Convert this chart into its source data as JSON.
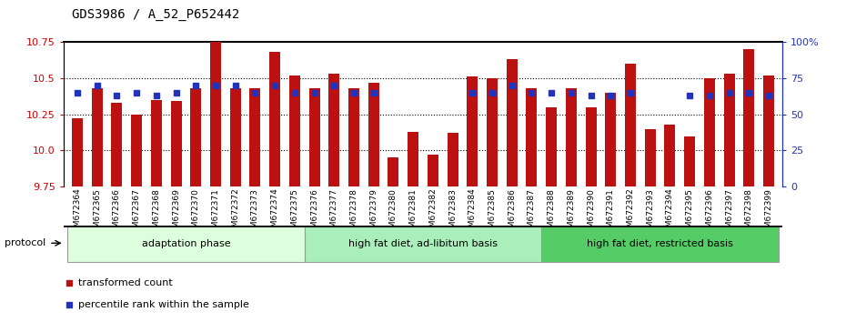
{
  "title": "GDS3986 / A_52_P652442",
  "samples": [
    "GSM672364",
    "GSM672365",
    "GSM672366",
    "GSM672367",
    "GSM672368",
    "GSM672369",
    "GSM672370",
    "GSM672371",
    "GSM672372",
    "GSM672373",
    "GSM672374",
    "GSM672375",
    "GSM672376",
    "GSM672377",
    "GSM672378",
    "GSM672379",
    "GSM672380",
    "GSM672381",
    "GSM672382",
    "GSM672383",
    "GSM672384",
    "GSM672385",
    "GSM672386",
    "GSM672387",
    "GSM672388",
    "GSM672389",
    "GSM672390",
    "GSM672391",
    "GSM672392",
    "GSM672393",
    "GSM672394",
    "GSM672395",
    "GSM672396",
    "GSM672397",
    "GSM672398",
    "GSM672399"
  ],
  "bar_values": [
    10.22,
    10.43,
    10.33,
    10.25,
    10.35,
    10.34,
    10.43,
    10.75,
    10.43,
    10.43,
    10.68,
    10.52,
    10.43,
    10.53,
    10.43,
    10.47,
    9.95,
    10.13,
    9.97,
    10.12,
    10.51,
    10.5,
    10.63,
    10.43,
    10.3,
    10.43,
    10.3,
    10.4,
    10.6,
    10.15,
    10.18,
    10.1,
    10.5,
    10.53,
    10.7,
    10.52
  ],
  "percentile_values": [
    65,
    70,
    63,
    65,
    63,
    65,
    70,
    70,
    70,
    65,
    70,
    65,
    65,
    70,
    65,
    65,
    null,
    null,
    null,
    null,
    65,
    65,
    70,
    65,
    65,
    65,
    63,
    63,
    65,
    null,
    null,
    63,
    63,
    65,
    65,
    63
  ],
  "ymin": 9.75,
  "ymax": 10.75,
  "yticks": [
    9.75,
    10.0,
    10.25,
    10.5,
    10.75
  ],
  "right_yticks": [
    0,
    25,
    50,
    75,
    100
  ],
  "right_ytick_labels": [
    "0",
    "25",
    "50",
    "75",
    "100%"
  ],
  "bar_color": "#bb1111",
  "percentile_color": "#2233bb",
  "bar_bottom": 9.75,
  "groups": [
    {
      "label": "adaptation phase",
      "start": 0,
      "end": 11,
      "color": "#ddffdd"
    },
    {
      "label": "high fat diet, ad-libitum basis",
      "start": 12,
      "end": 23,
      "color": "#aaeebb"
    },
    {
      "label": "high fat diet, restricted basis",
      "start": 24,
      "end": 35,
      "color": "#55cc66"
    }
  ],
  "protocol_label": "protocol",
  "legend_items": [
    {
      "label": "transformed count",
      "color": "#bb1111"
    },
    {
      "label": "percentile rank within the sample",
      "color": "#2233bb"
    }
  ],
  "background_color": "#ffffff",
  "title_fontsize": 10,
  "tick_fontsize": 7,
  "axis_label_color_left": "#cc0000",
  "axis_label_color_right": "#2233bb"
}
